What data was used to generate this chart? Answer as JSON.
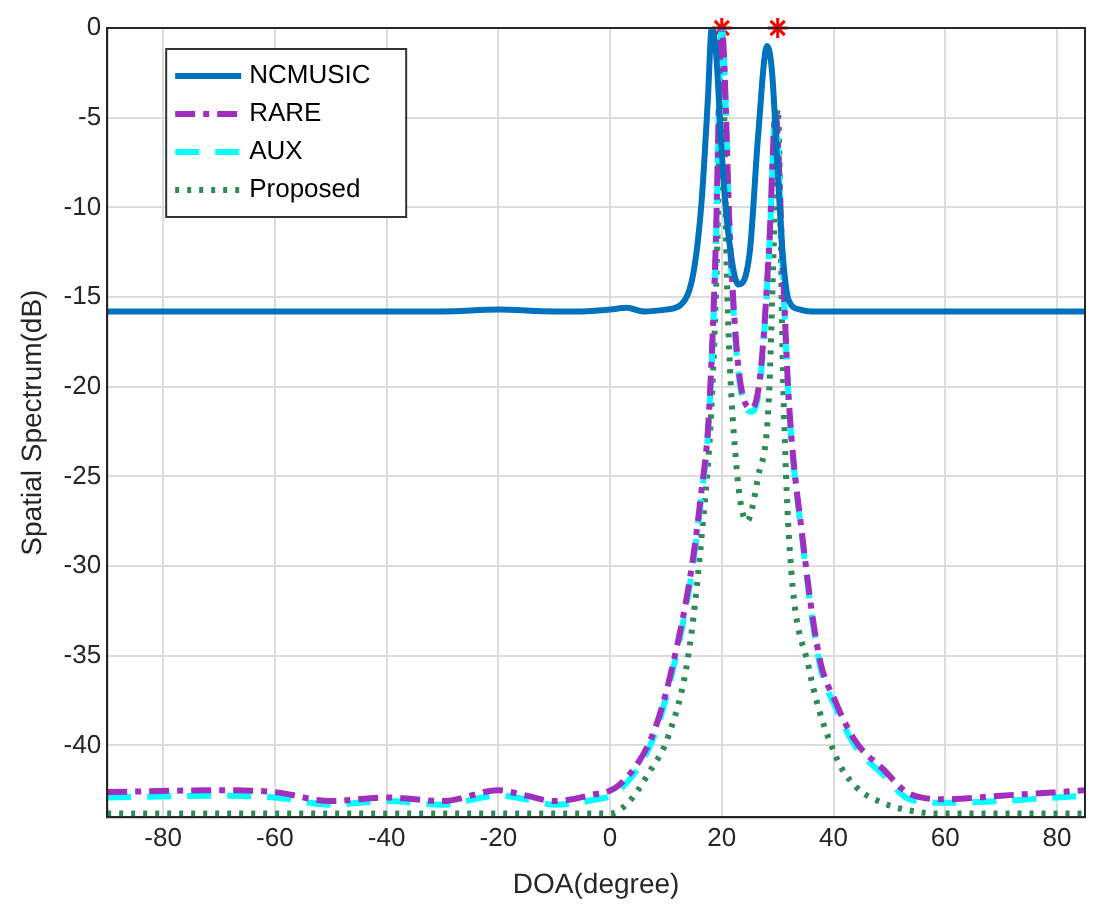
{
  "chart_data": {
    "type": "line",
    "xlabel": "DOA(degree)",
    "ylabel": "Spatial Spectrum(dB)",
    "xlim": [
      -90,
      85
    ],
    "ylim": [
      -44,
      0
    ],
    "xticks": [
      -80,
      -60,
      -40,
      -20,
      0,
      20,
      40,
      60,
      80
    ],
    "yticks": [
      -40,
      -35,
      -30,
      -25,
      -20,
      -15,
      -10,
      -5,
      0
    ],
    "grid": true,
    "legend": "top left",
    "marker": "none",
    "series": [
      {
        "name": "NCMUSIC",
        "color": "#0072bd",
        "line_style": "solid",
        "x": [
          -90,
          -70,
          -50,
          -30,
          -20,
          -10,
          -5,
          0,
          3,
          6,
          10,
          12.8,
          15,
          16.4,
          17.5,
          18.2,
          19,
          20,
          21,
          23,
          25,
          26.5,
          28.1,
          29,
          30,
          31,
          32,
          34,
          36,
          40,
          50,
          60,
          70,
          85
        ],
        "values": [
          -15.8,
          -15.8,
          -15.8,
          -15.8,
          -15.7,
          -15.8,
          -15.8,
          -15.7,
          -15.6,
          -15.8,
          -15.7,
          -15.4,
          -13.5,
          -9.6,
          -4,
          0,
          -1.5,
          -7,
          -11,
          -14.3,
          -12.5,
          -6,
          -1,
          -2.5,
          -8,
          -13,
          -15.2,
          -15.7,
          -15.8,
          -15.8,
          -15.8,
          -15.8,
          -15.8,
          -15.8
        ]
      },
      {
        "name": "RARE",
        "color": "#a02fc0",
        "line_style": "dashdot",
        "x": [
          -90,
          -70,
          -60,
          -50,
          -40,
          -30,
          -20,
          -15,
          -10,
          -4,
          2,
          8,
          11.6,
          14.6,
          16.4,
          17.6,
          18.8,
          20,
          21.5,
          23,
          25.4,
          27,
          28.5,
          29.6,
          31,
          32,
          34.4,
          37.4,
          40.4,
          44,
          48.8,
          53.6,
          60,
          70,
          80,
          85
        ],
        "values": [
          -42.6,
          -42.5,
          -42.6,
          -43.1,
          -42.9,
          -43.1,
          -42.5,
          -42.8,
          -43.1,
          -42.8,
          -42.1,
          -39.1,
          -35,
          -30.1,
          -25.7,
          -22,
          -13.3,
          0,
          -12,
          -19,
          -21.2,
          -19,
          -12,
          -4.8,
          -14,
          -20.8,
          -28.3,
          -35,
          -37.6,
          -39.8,
          -41.3,
          -42.7,
          -43,
          -42.8,
          -42.6,
          -42.5
        ]
      },
      {
        "name": "AUX",
        "color": "#00ffff",
        "line_style": "dashed",
        "x": [
          -90,
          -70,
          -60,
          -50,
          -40,
          -30,
          -20,
          -15,
          -10,
          -4,
          2,
          8,
          11.6,
          14.6,
          16.4,
          17.6,
          18.8,
          20,
          21.5,
          23,
          25.4,
          27,
          28.5,
          29.6,
          31,
          32,
          34.4,
          37.4,
          40.4,
          44,
          48.8,
          53.6,
          60,
          70,
          80,
          85
        ],
        "values": [
          -42.9,
          -42.8,
          -42.9,
          -43.3,
          -43.1,
          -43.3,
          -42.8,
          -43,
          -43.3,
          -43.1,
          -42.4,
          -39.4,
          -35.3,
          -30.4,
          -26,
          -22.3,
          -13.8,
          0,
          -12.3,
          -19.3,
          -21.4,
          -19.3,
          -12.3,
          -5,
          -14.3,
          -21,
          -28.5,
          -35.3,
          -37.9,
          -40.1,
          -41.6,
          -43,
          -43.2,
          -43.1,
          -42.9,
          -42.8
        ]
      },
      {
        "name": "Proposed",
        "color": "#2e8b57",
        "line_style": "dotted",
        "x": [
          -90,
          -60,
          -30,
          0,
          3.2,
          7,
          10.4,
          14,
          16.4,
          18.2,
          19.2,
          20,
          21,
          22.5,
          24.5,
          26.5,
          28.4,
          29.3,
          30,
          31,
          32,
          35.6,
          40.4,
          44,
          48.8,
          55,
          60,
          85
        ],
        "values": [
          -43.8,
          -43.8,
          -43.8,
          -43.8,
          -43.2,
          -41.5,
          -39.5,
          -35,
          -28.3,
          -20.8,
          -12,
          0,
          -15,
          -24,
          -27.5,
          -25,
          -20.8,
          -12,
          -4.5,
          -20,
          -28.3,
          -35.7,
          -40.6,
          -42.3,
          -43.2,
          -43.7,
          -43.8,
          -43.8
        ]
      },
      {
        "type": "scatter",
        "color": "#ff0000",
        "marker": "cross",
        "x": [
          20,
          30
        ],
        "values": [
          0,
          0
        ]
      }
    ]
  }
}
